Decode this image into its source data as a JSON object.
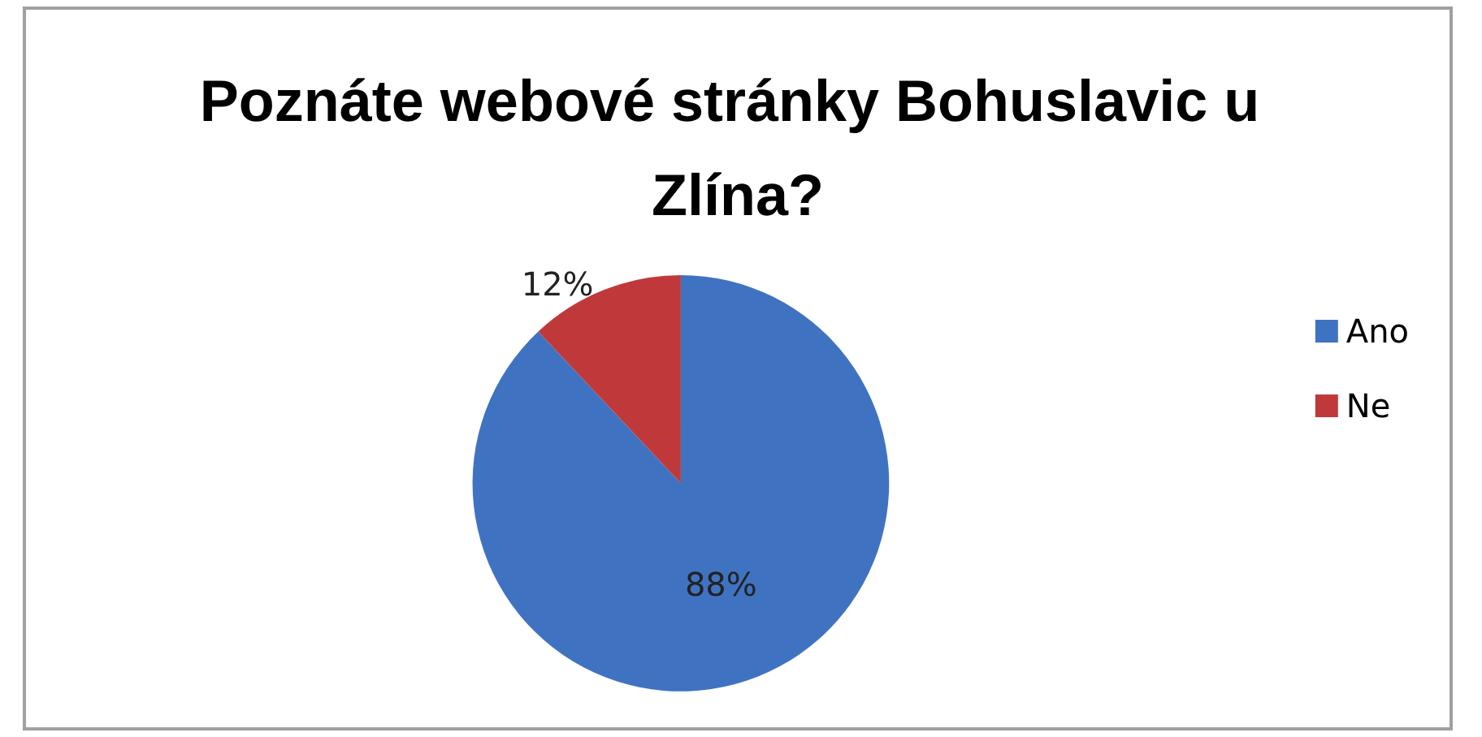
{
  "chart_data": {
    "type": "pie",
    "title": "Poznáte webové stránky Bohuslavic u Zlína?",
    "categories": [
      "Ano",
      "Ne"
    ],
    "values": [
      88,
      12
    ],
    "colors": [
      "#3f73c2",
      "#c0393a"
    ],
    "legend": "right",
    "value_labels": [
      "88%",
      "12%"
    ]
  }
}
